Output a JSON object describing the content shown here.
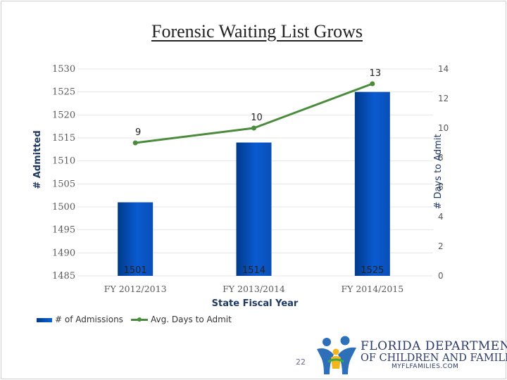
{
  "slide": {
    "title": "Forensic Waiting List Grows",
    "page_number": "22"
  },
  "logo": {
    "line1": "FLORIDA DEPARTMENT",
    "line2": "OF CHILDREN AND FAMILIES",
    "line3": "MYFLFAMILIES.COM",
    "icon": "family-figures-icon"
  },
  "chart_data": {
    "type": "bar",
    "title": "Forensic Waiting List Grows",
    "categories": [
      "FY 2012/2013",
      "FY 2013/2014",
      "FY 2014/2015"
    ],
    "xlabel": "State Fiscal Year",
    "ylabel": "# Admitted",
    "y2label": "# Days to Admit",
    "ylim": [
      1485,
      1530
    ],
    "yticks": [
      "1530",
      "1525",
      "1520",
      "1515",
      "1510",
      "1505",
      "1500",
      "1495",
      "1490",
      "1485"
    ],
    "y2lim": [
      0,
      14
    ],
    "y2ticks": [
      "14",
      "12",
      "10",
      "8",
      "6",
      "4",
      "2",
      "0"
    ],
    "grid": true,
    "legend_position": "bottom-left",
    "series": [
      {
        "name": "# of Admissions",
        "type": "bar",
        "axis": "left",
        "values": [
          1501,
          1514,
          1525
        ],
        "labels": [
          "1501",
          "1514",
          "1525"
        ],
        "color": "#0a52c2"
      },
      {
        "name": "Avg. Days to Admit",
        "type": "line",
        "axis": "right",
        "values": [
          9,
          10,
          13
        ],
        "labels": [
          "9",
          "10",
          "13"
        ],
        "color": "#4a8c3c"
      }
    ]
  }
}
